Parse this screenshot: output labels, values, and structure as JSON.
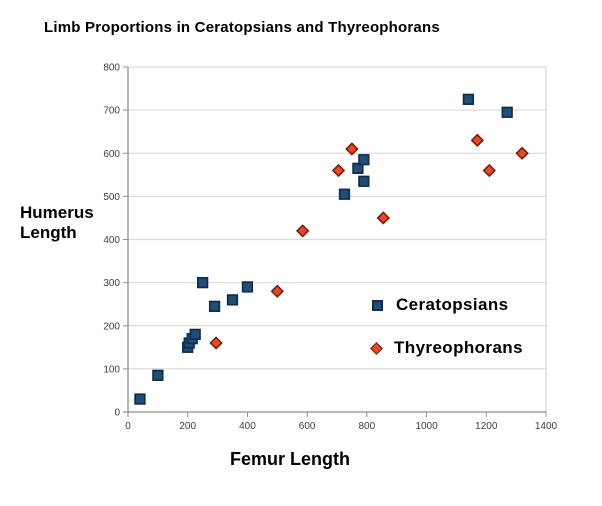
{
  "title": "Limb Proportions in Ceratopsians and Thyreophorans",
  "axis_titles": {
    "y_line1": "Humerus",
    "y_line2": "Length",
    "x": "Femur Length"
  },
  "colors": {
    "background": "#FFFFFF",
    "gridline": "#DCDCDC",
    "axis": "#8F8F8F",
    "tick_text": "#404040",
    "title_text": "#000000",
    "ceratopsian_fill": "#1F4E79",
    "ceratopsian_stroke": "#0F2D4D",
    "thyreophoran_fill": "#E64A1E",
    "thyreophoran_stroke": "#7A150B"
  },
  "chart_data": {
    "type": "scatter",
    "title": "Limb Proportions in Ceratopsians and Thyreophorans",
    "xlabel": "Femur Length",
    "ylabel": "Humerus Length",
    "xlim": [
      0,
      1400
    ],
    "ylim": [
      0,
      800
    ],
    "x_ticks": [
      0,
      200,
      400,
      600,
      800,
      1000,
      1200,
      1400
    ],
    "y_ticks": [
      0,
      100,
      200,
      300,
      400,
      500,
      600,
      700,
      800
    ],
    "grid": "horizontal-only",
    "legend_position": "inside-lower-right",
    "series": [
      {
        "name": "Ceratopsians",
        "marker": "square",
        "fill": "#1F4E79",
        "stroke": "#0F2D4D",
        "points": [
          [
            40,
            30
          ],
          [
            100,
            85
          ],
          [
            200,
            150
          ],
          [
            205,
            160
          ],
          [
            215,
            170
          ],
          [
            225,
            180
          ],
          [
            250,
            300
          ],
          [
            290,
            245
          ],
          [
            350,
            260
          ],
          [
            400,
            290
          ],
          [
            725,
            505
          ],
          [
            770,
            565
          ],
          [
            790,
            535
          ],
          [
            790,
            585
          ],
          [
            1140,
            725
          ],
          [
            1270,
            695
          ]
        ]
      },
      {
        "name": "Thyreophorans",
        "marker": "diamond",
        "fill": "#E64A1E",
        "stroke": "#7A150B",
        "points": [
          [
            295,
            160
          ],
          [
            500,
            280
          ],
          [
            585,
            420
          ],
          [
            705,
            560
          ],
          [
            750,
            610
          ],
          [
            855,
            450
          ],
          [
            1170,
            630
          ],
          [
            1210,
            560
          ],
          [
            1320,
            600
          ]
        ]
      }
    ]
  }
}
